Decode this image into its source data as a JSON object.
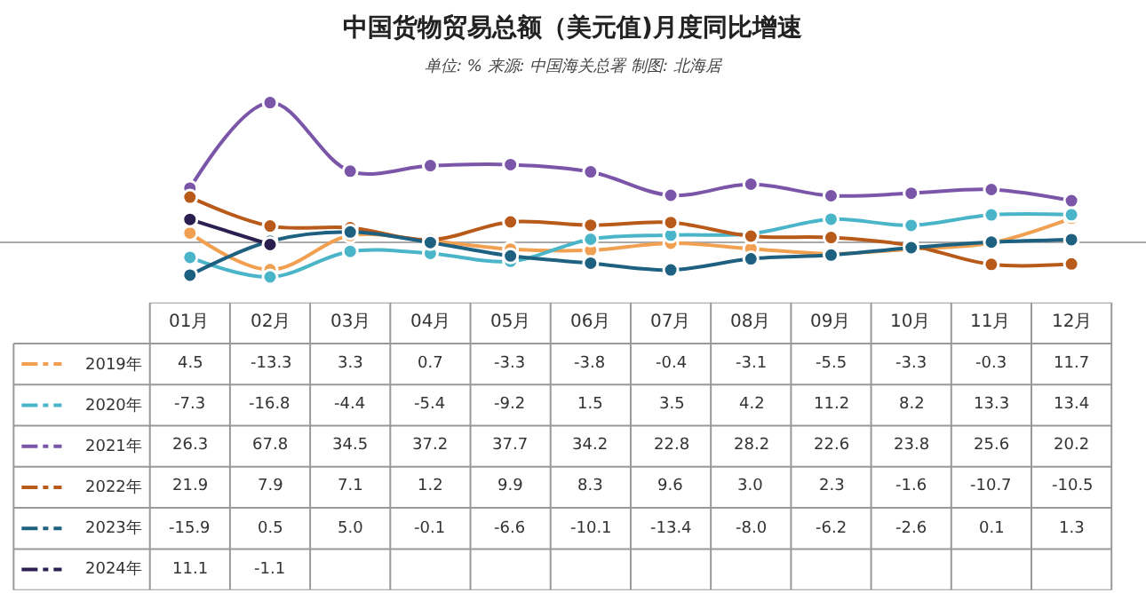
{
  "chart_data": {
    "type": "line",
    "title": "中国货物贸易总额（美元值)月度同比增速",
    "subtitle": "单位: % 来源: 中国海关总署 制图: 北海居",
    "categories": [
      "01月",
      "02月",
      "03月",
      "04月",
      "05月",
      "06月",
      "07月",
      "08月",
      "09月",
      "10月",
      "11月",
      "12月"
    ],
    "tick_labels": false,
    "legend": "left",
    "marker": "circle",
    "line_style": "solid",
    "series": [
      {
        "name": "2019年",
        "color": "#f0a050",
        "values": [
          4.5,
          -13.3,
          3.3,
          0.7,
          -3.3,
          -3.8,
          -0.4,
          -3.1,
          -5.5,
          -3.3,
          -0.3,
          11.7
        ],
        "value_labels": [
          "4.5",
          "-13.3",
          "3.3",
          "0.7",
          "-3.3",
          "-3.8",
          "-0.4",
          "-3.1",
          "-5.5",
          "-3.3",
          "-0.3",
          "11.7"
        ]
      },
      {
        "name": "2020年",
        "color": "#4ab5c8",
        "values": [
          -7.3,
          -16.8,
          -4.4,
          -5.4,
          -9.2,
          1.5,
          3.5,
          4.2,
          11.2,
          8.2,
          13.3,
          13.4
        ],
        "value_labels": [
          "-7.3",
          "-16.8",
          "-4.4",
          "-5.4",
          "-9.2",
          "1.5",
          "3.5",
          "4.2",
          "11.2",
          "8.2",
          "13.3",
          "13.4"
        ]
      },
      {
        "name": "2021年",
        "color": "#7a55a8",
        "values": [
          26.3,
          67.8,
          34.5,
          37.2,
          37.7,
          34.2,
          22.8,
          28.2,
          22.6,
          23.8,
          25.6,
          20.2
        ],
        "value_labels": [
          "26.3",
          "67.8",
          "34.5",
          "37.2",
          "37.7",
          "34.2",
          "22.8",
          "28.2",
          "22.6",
          "23.8",
          "25.6",
          "20.2"
        ]
      },
      {
        "name": "2022年",
        "color": "#b85a1a",
        "values": [
          21.9,
          7.9,
          7.1,
          1.2,
          9.9,
          8.3,
          9.6,
          3.0,
          2.3,
          -1.6,
          -10.7,
          -10.5
        ],
        "value_labels": [
          "21.9",
          "7.9",
          "7.1",
          "1.2",
          "9.9",
          "8.3",
          "9.6",
          "3.0",
          "2.3",
          "-1.6",
          "-10.7",
          "-10.5"
        ]
      },
      {
        "name": "2023年",
        "color": "#1e6080",
        "values": [
          -15.9,
          0.5,
          5.0,
          -0.1,
          -6.6,
          -10.1,
          -13.4,
          -8.0,
          -6.2,
          -2.6,
          0.1,
          1.3
        ],
        "value_labels": [
          "-15.9",
          "0.5",
          "5.0",
          "-0.1",
          "-6.6",
          "-10.1",
          "-13.4",
          "-8.0",
          "-6.2",
          "-2.6",
          "0.1",
          "1.3"
        ]
      },
      {
        "name": "2024年",
        "color": "#2a1f50",
        "values": [
          11.1,
          -1.1,
          null,
          null,
          null,
          null,
          null,
          null,
          null,
          null,
          null,
          null
        ],
        "value_labels": [
          "11.1",
          "-1.1",
          null,
          null,
          null,
          null,
          null,
          null,
          null,
          null,
          null,
          null
        ]
      }
    ]
  }
}
